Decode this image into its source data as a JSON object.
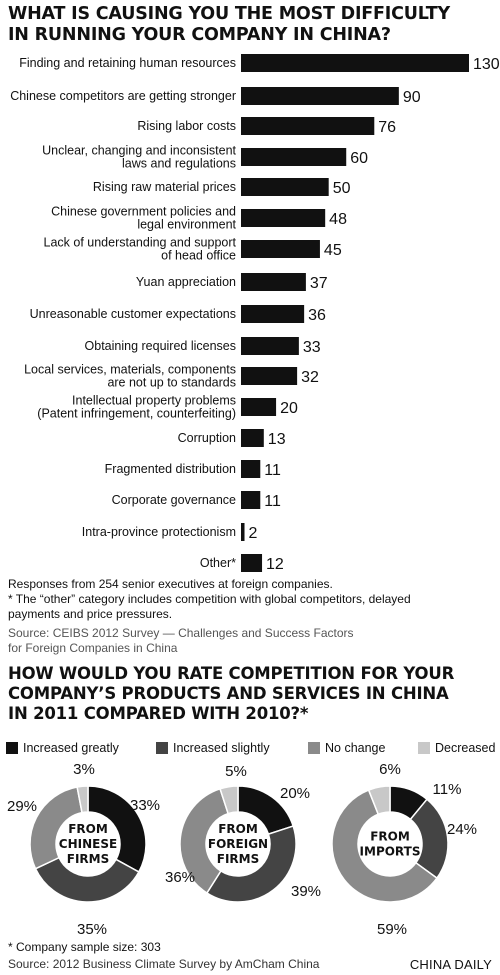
{
  "title1": [
    "WHAT IS CAUSING YOU THE MOST DIFFICULTY",
    "IN RUNNING YOUR COMPANY IN CHINA?"
  ],
  "notes": {
    "line1": "Responses from 254 senior executives at foreign companies.",
    "line2": "* The “other” category includes competition with global competitors, delayed",
    "line3": "payments and price pressures.",
    "source1a": "Source: CEIBS 2012 Survey — Challenges and Success Factors",
    "source1b": "for Foreign Companies in China"
  },
  "title2": [
    "HOW WOULD YOU RATE COMPETITION FOR YOUR",
    "COMPANY’S PRODUCTS AND SERVICES IN CHINA",
    "IN 2011 COMPARED WITH 2010?*"
  ],
  "legend": [
    {
      "label": "Increased greatly",
      "color": "#111111"
    },
    {
      "label": "Increased slightly",
      "color": "#444444"
    },
    {
      "label": "No change",
      "color": "#8a8a8a"
    },
    {
      "label": "Decreased",
      "color": "#c8c8c8"
    }
  ],
  "footer": {
    "sample": "* Company sample size: 303",
    "source": "Source: 2012 Business Climate Survey by AmCham China",
    "brand": "CHINA DAILY"
  },
  "chart_data": [
    {
      "type": "bar",
      "orientation": "horizontal",
      "categories": [
        "Finding and retaining human resources",
        "Chinese competitors are getting stronger",
        "Rising labor costs",
        "Unclear, changing and inconsistent\nlaws and regulations",
        "Rising raw material prices",
        "Chinese government policies and\nlegal environment",
        "Lack of understanding and support\nof head office",
        "Yuan appreciation",
        "Unreasonable customer expectations",
        "Obtaining required licenses",
        "Local services, materials, components\nare not up to standards",
        "Intellectual property problems\n(Patent infringement, counterfeiting)",
        "Corruption",
        "Fragmented distribution",
        "Corporate governance",
        "Intra-province protectionism",
        "Other*"
      ],
      "values": [
        130,
        90,
        76,
        60,
        50,
        48,
        45,
        37,
        36,
        33,
        32,
        20,
        13,
        11,
        11,
        2,
        12
      ],
      "data_labels": [
        "130",
        "90",
        "76",
        "60",
        "50",
        "48",
        "45",
        "37",
        "36",
        "33",
        "32",
        "20",
        "13",
        "11",
        "11",
        "2",
        "12"
      ],
      "color": "#111111"
    },
    {
      "type": "pie",
      "variant": "donut",
      "center_label": [
        "FROM",
        "CHINESE",
        "FIRMS"
      ],
      "categories": [
        "Increased greatly",
        "Increased slightly",
        "No change",
        "Decreased"
      ],
      "values": [
        33,
        35,
        29,
        3
      ],
      "data_labels": [
        "33%",
        "35%",
        "29%",
        "3%"
      ]
    },
    {
      "type": "pie",
      "variant": "donut",
      "center_label": [
        "FROM",
        "FOREIGN",
        "FIRMS"
      ],
      "categories": [
        "Increased greatly",
        "Increased slightly",
        "No change",
        "Decreased"
      ],
      "values": [
        20,
        39,
        36,
        5
      ],
      "data_labels": [
        "20%",
        "39%",
        "36%",
        "5%"
      ]
    },
    {
      "type": "pie",
      "variant": "donut",
      "center_label": [
        "FROM",
        "IMPORTS"
      ],
      "categories": [
        "Increased greatly",
        "Increased slightly",
        "No change",
        "Decreased"
      ],
      "values": [
        11,
        24,
        59,
        6
      ],
      "data_labels": [
        "11%",
        "24%",
        "59%",
        "6%"
      ]
    }
  ]
}
